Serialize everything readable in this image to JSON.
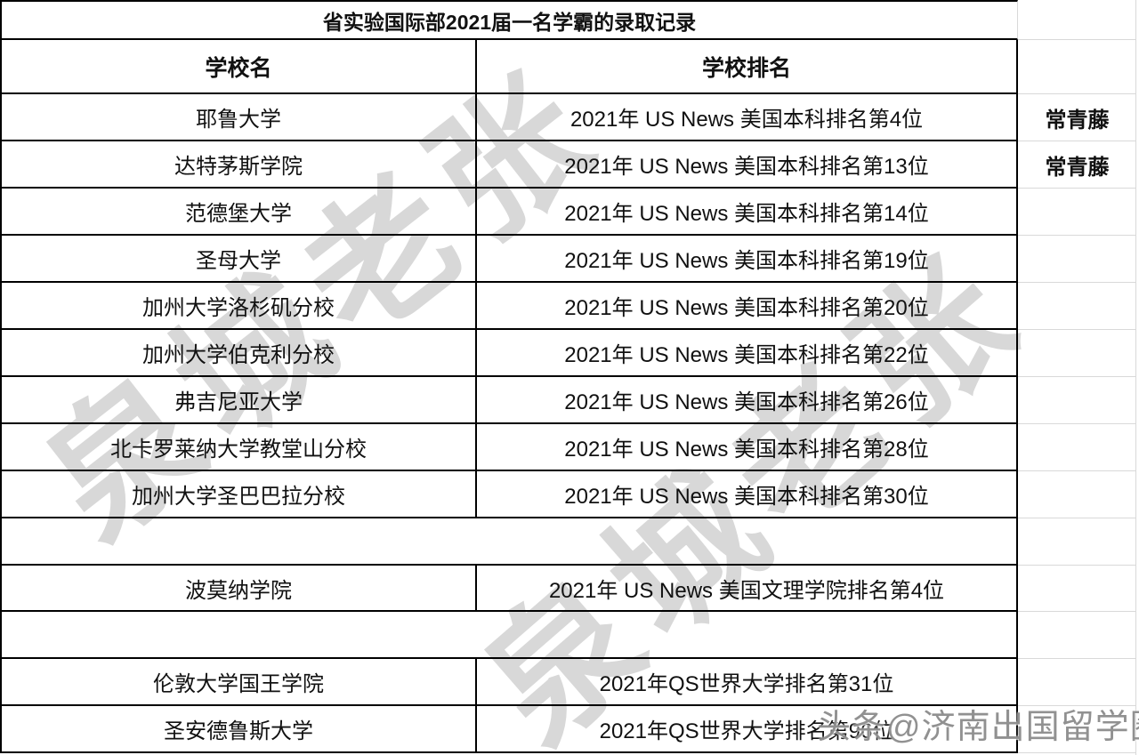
{
  "title": "省实验国际部2021届一名学霸的录取记录",
  "watermarks": {
    "diagonal_text": "泉城老张",
    "bottom_text": "头条@济南出国留学圈"
  },
  "colors": {
    "table_border": "#000000",
    "gridline": "#d9d9d9",
    "diagonal_watermark": "#d8d8d8",
    "bottom_watermark": "#828282"
  },
  "table": {
    "headers": [
      "学校名",
      "学校排名"
    ],
    "rows": [
      {
        "school": "耶鲁大学",
        "ranking": "2021年 US News 美国本科排名第4位",
        "tag": "常青藤"
      },
      {
        "school": "达特茅斯学院",
        "ranking": "2021年 US News 美国本科排名第13位",
        "tag": "常青藤"
      },
      {
        "school": "范德堡大学",
        "ranking": "2021年 US News 美国本科排名第14位",
        "tag": ""
      },
      {
        "school": "圣母大学",
        "ranking": "2021年 US News 美国本科排名第19位",
        "tag": ""
      },
      {
        "school": "加州大学洛杉矶分校",
        "ranking": "2021年 US News 美国本科排名第20位",
        "tag": ""
      },
      {
        "school": "加州大学伯克利分校",
        "ranking": "2021年 US News 美国本科排名第22位",
        "tag": ""
      },
      {
        "school": "弗吉尼亚大学",
        "ranking": "2021年 US News 美国本科排名第26位",
        "tag": ""
      },
      {
        "school": "北卡罗莱纳大学教堂山分校",
        "ranking": "2021年 US News 美国本科排名第28位",
        "tag": ""
      },
      {
        "school": "加州大学圣巴巴拉分校",
        "ranking": "2021年 US News 美国本科排名第30位",
        "tag": ""
      },
      {
        "school": "",
        "ranking": "",
        "tag": "",
        "type": "gap"
      },
      {
        "school": "波莫纳学院",
        "ranking": "2021年 US News 美国文理学院排名第4位",
        "tag": ""
      },
      {
        "school": "",
        "ranking": "",
        "tag": "",
        "type": "gap"
      },
      {
        "school": "伦敦大学国王学院",
        "ranking": "2021年QS世界大学排名第31位",
        "tag": ""
      },
      {
        "school": "圣安德鲁斯大学",
        "ranking": "2021年QS世界大学排名第96位",
        "tag": ""
      }
    ]
  }
}
